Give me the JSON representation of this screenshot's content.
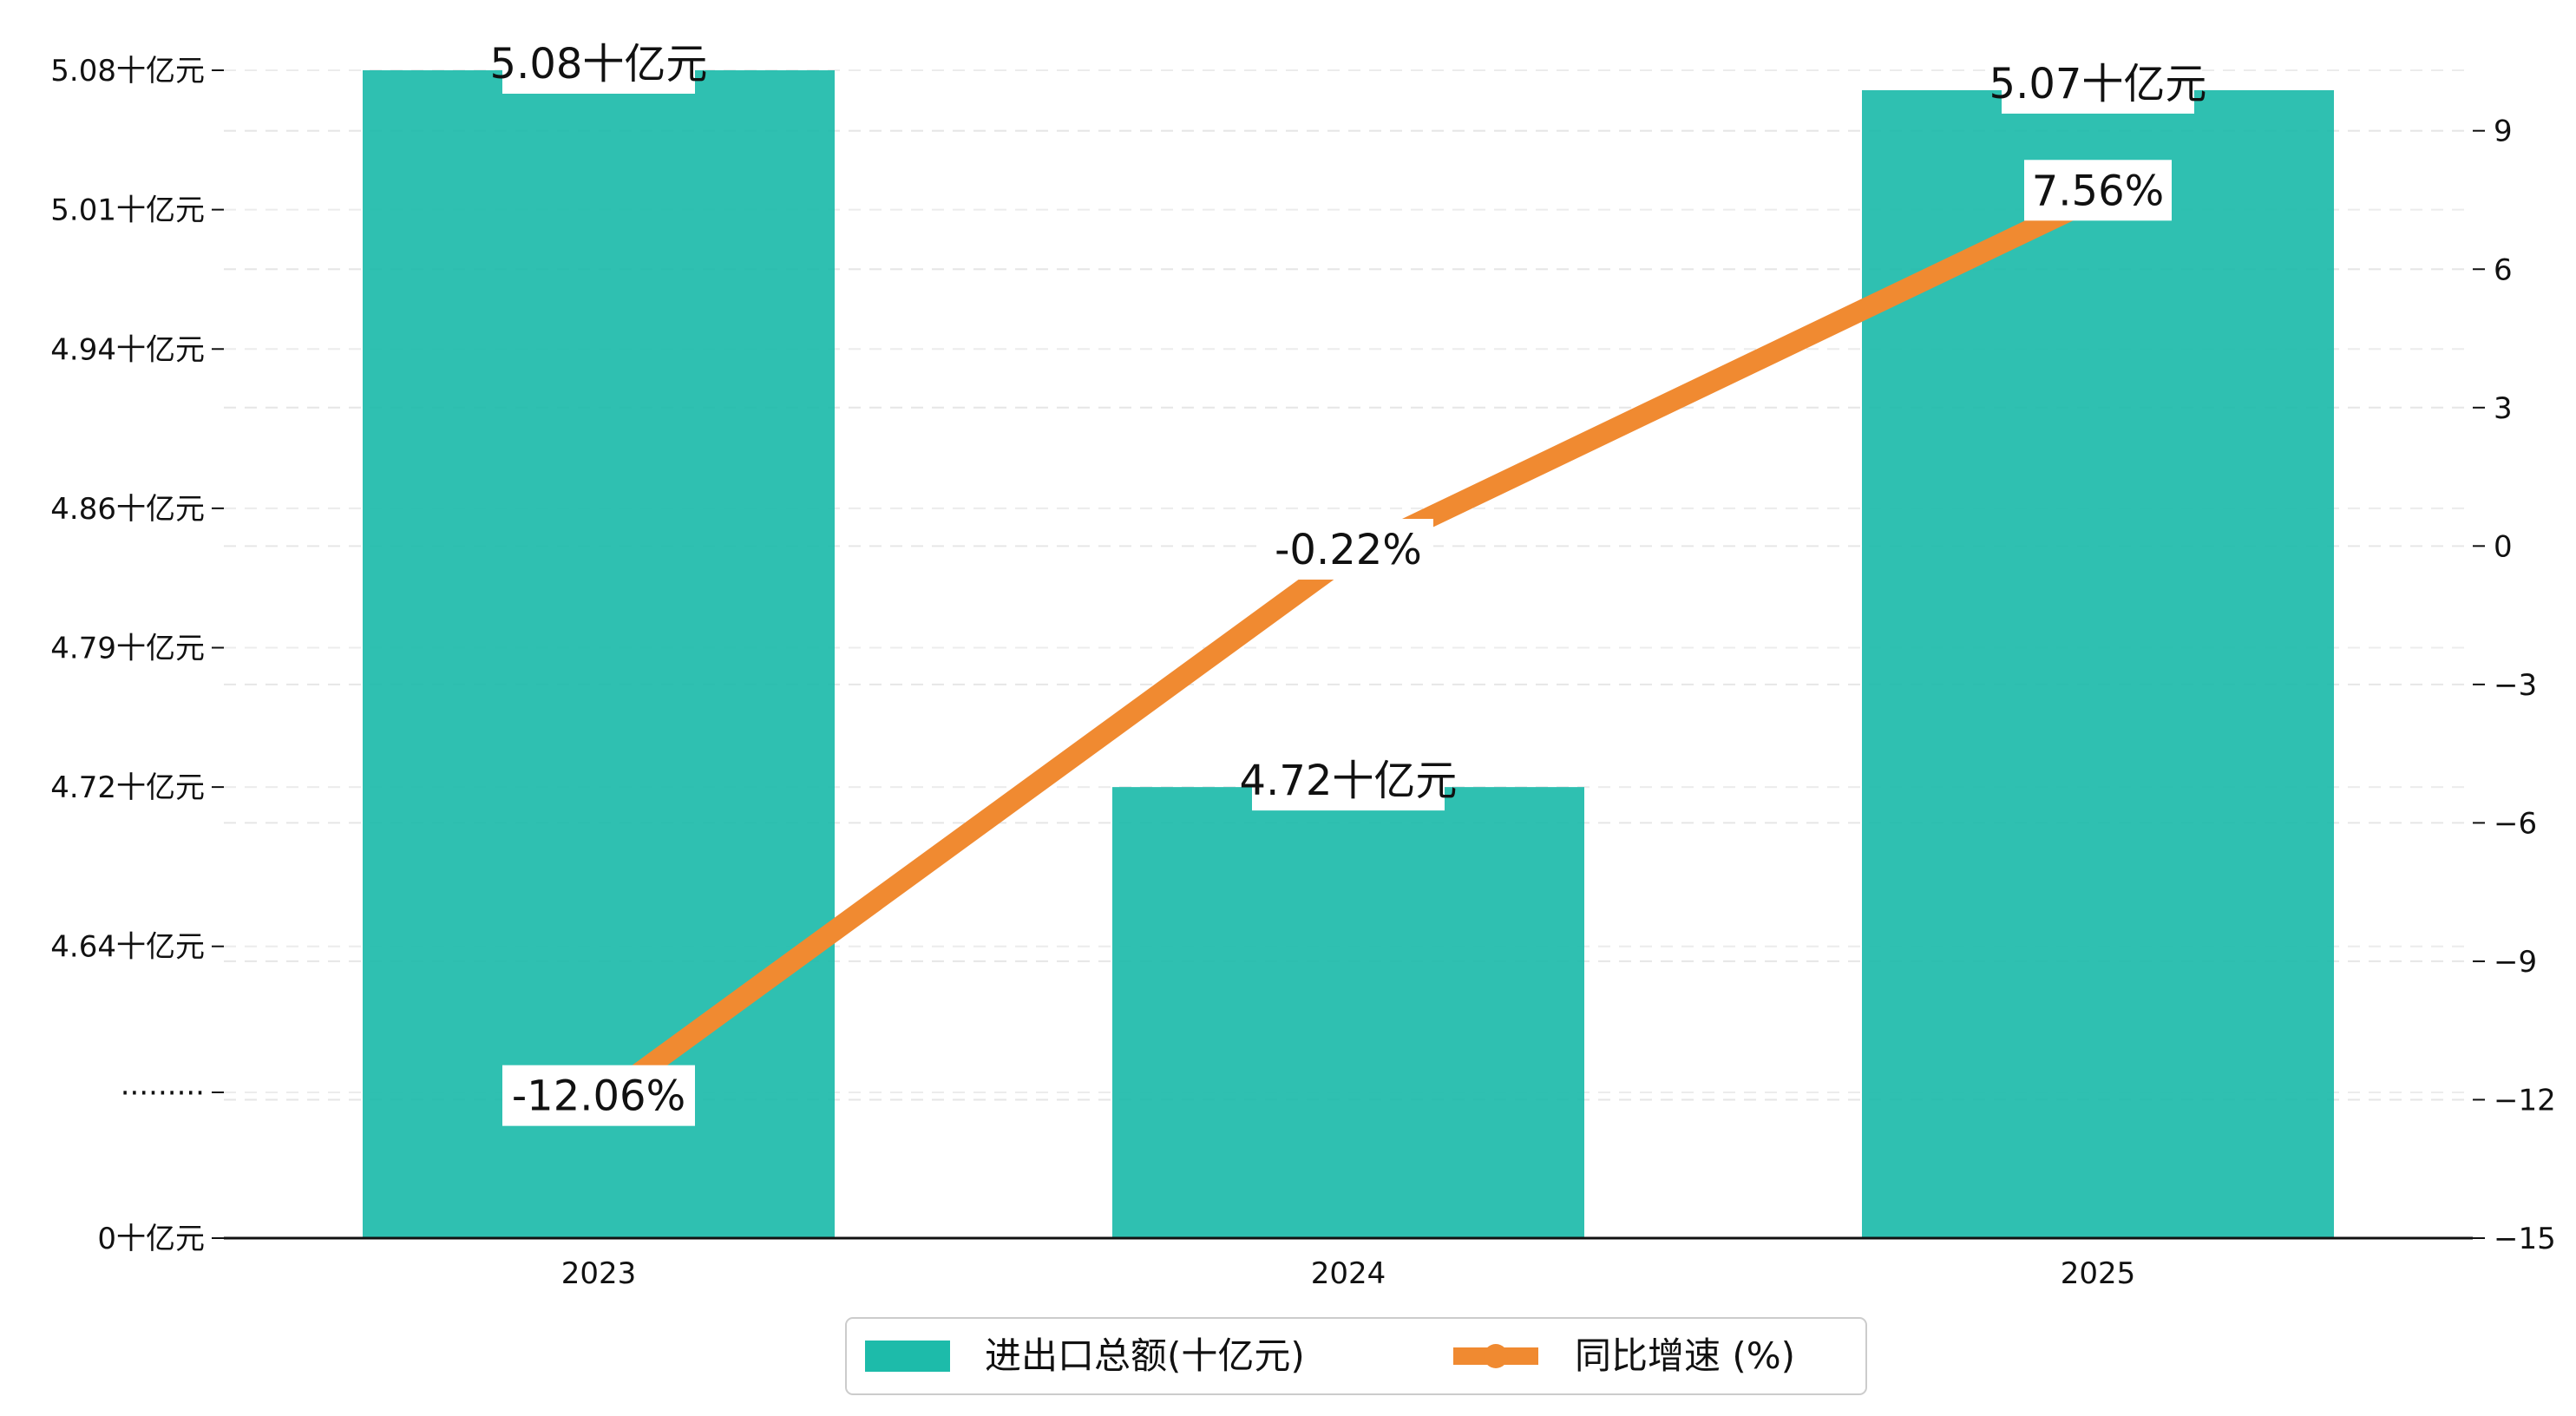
{
  "chart_data": {
    "type": "bar",
    "categories": [
      "2023",
      "2024",
      "2025"
    ],
    "series": [
      {
        "name": "进出口总额(十亿元)",
        "kind": "bar",
        "axis": "left",
        "values": [
          5.08,
          4.72,
          5.07
        ],
        "labels": [
          "5.08十亿元",
          "4.72十亿元",
          "5.07十亿元"
        ],
        "color": "#1dbbaa"
      },
      {
        "name": "同比增速 (%)",
        "kind": "line",
        "axis": "right",
        "values": [
          -12.06,
          -0.22,
          7.56
        ],
        "labels": [
          "-12.06%",
          "-0.22%",
          "7.56%"
        ],
        "color": "#f08a31"
      }
    ],
    "y_axis_left": {
      "broken": true,
      "ticks": [
        {
          "value": 0,
          "label": "0十亿元"
        },
        {
          "label": "·········"
        },
        {
          "value": 4.64,
          "label": "4.64十亿元"
        },
        {
          "value": 4.72,
          "label": "4.72十亿元"
        },
        {
          "value": 4.79,
          "label": "4.79十亿元"
        },
        {
          "value": 4.86,
          "label": "4.86十亿元"
        },
        {
          "value": 4.94,
          "label": "4.94十亿元"
        },
        {
          "value": 5.01,
          "label": "5.01十亿元"
        },
        {
          "value": 5.08,
          "label": "5.08十亿元"
        }
      ]
    },
    "y_axis_right": {
      "ylim": [
        -15,
        10.8
      ],
      "ticks": [
        -15,
        -12,
        -9,
        -6,
        -3,
        0,
        3,
        6,
        9
      ]
    },
    "grid": true,
    "legend_position": "bottom-center"
  }
}
